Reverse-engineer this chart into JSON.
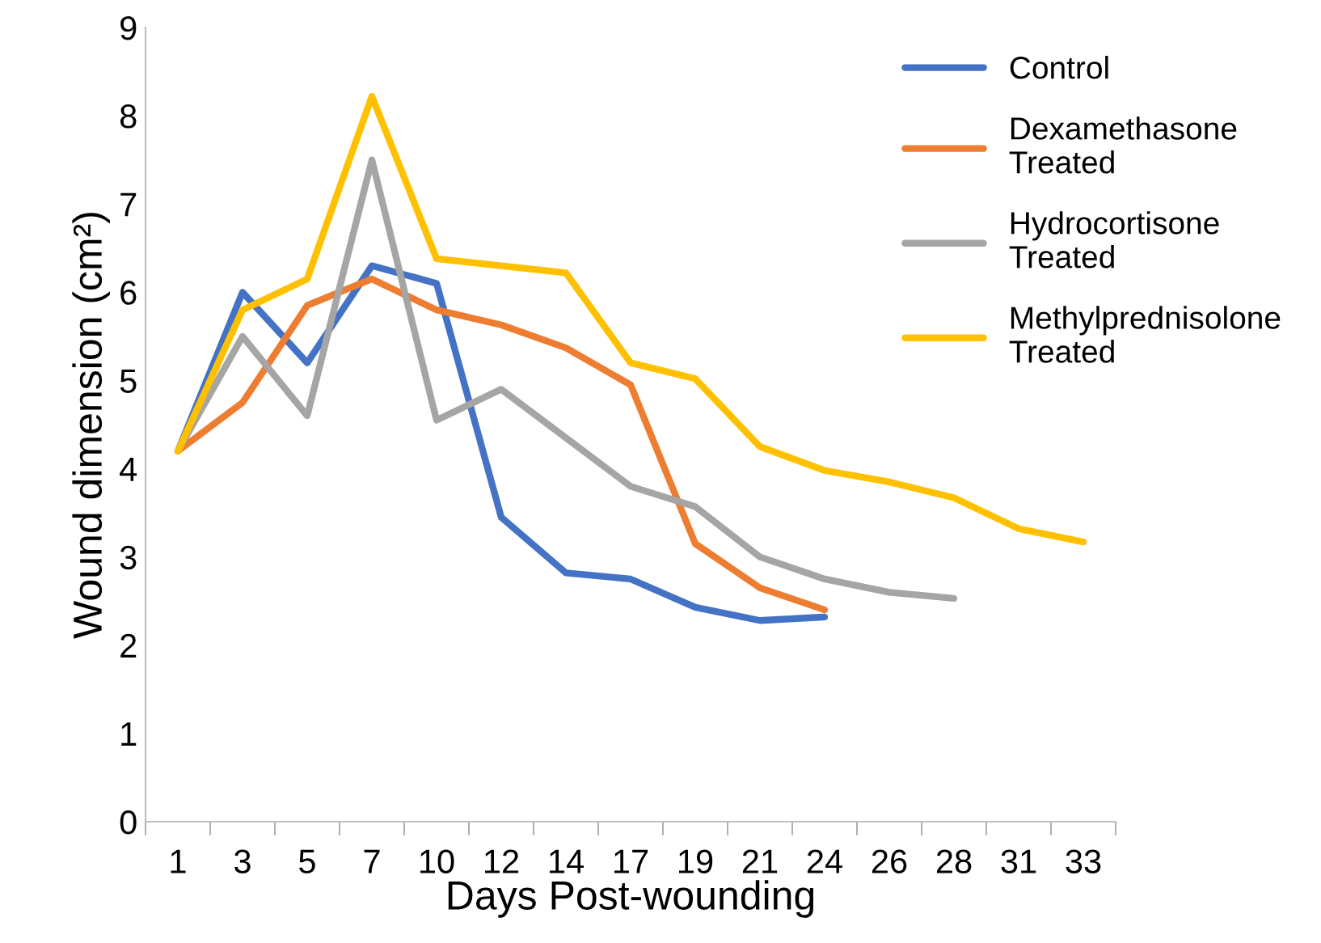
{
  "chart_data": {
    "type": "line",
    "xlabel": "Days Post-wounding",
    "ylabel": "Wound dimension (cm²)",
    "categories": [
      "1",
      "3",
      "5",
      "7",
      "10",
      "12",
      "14",
      "17",
      "19",
      "21",
      "24",
      "26",
      "28",
      "31",
      "33"
    ],
    "series": [
      {
        "name": "Control",
        "color": "#4472c4",
        "values": [
          4.2,
          6.0,
          5.2,
          6.3,
          6.1,
          3.45,
          2.82,
          2.75,
          2.43,
          2.28,
          2.32,
          null,
          null,
          null,
          null
        ]
      },
      {
        "name": "Dexamethasone Treated",
        "color": "#ed7d31",
        "values": [
          4.2,
          4.75,
          5.85,
          6.15,
          5.8,
          5.63,
          5.37,
          4.95,
          3.15,
          2.65,
          2.4,
          null,
          null,
          null,
          null
        ]
      },
      {
        "name": "Hydrocortisone Treated",
        "color": "#a5a5a5",
        "values": [
          4.2,
          5.5,
          4.6,
          7.5,
          4.55,
          4.9,
          4.35,
          3.8,
          3.57,
          3.0,
          2.75,
          2.6,
          2.53,
          null,
          null
        ]
      },
      {
        "name": "Methylprednisolone Treated",
        "color": "#ffc000",
        "values": [
          4.2,
          5.8,
          6.15,
          8.22,
          6.38,
          6.3,
          6.22,
          5.2,
          5.02,
          4.25,
          3.98,
          3.85,
          3.67,
          3.32,
          3.17
        ]
      }
    ],
    "ylim": [
      0,
      9
    ],
    "yticks": [
      0,
      1,
      2,
      3,
      4,
      5,
      6,
      7,
      8,
      9
    ],
    "grid": false,
    "legend": "top right",
    "marker": "none",
    "line_style": "solid"
  }
}
